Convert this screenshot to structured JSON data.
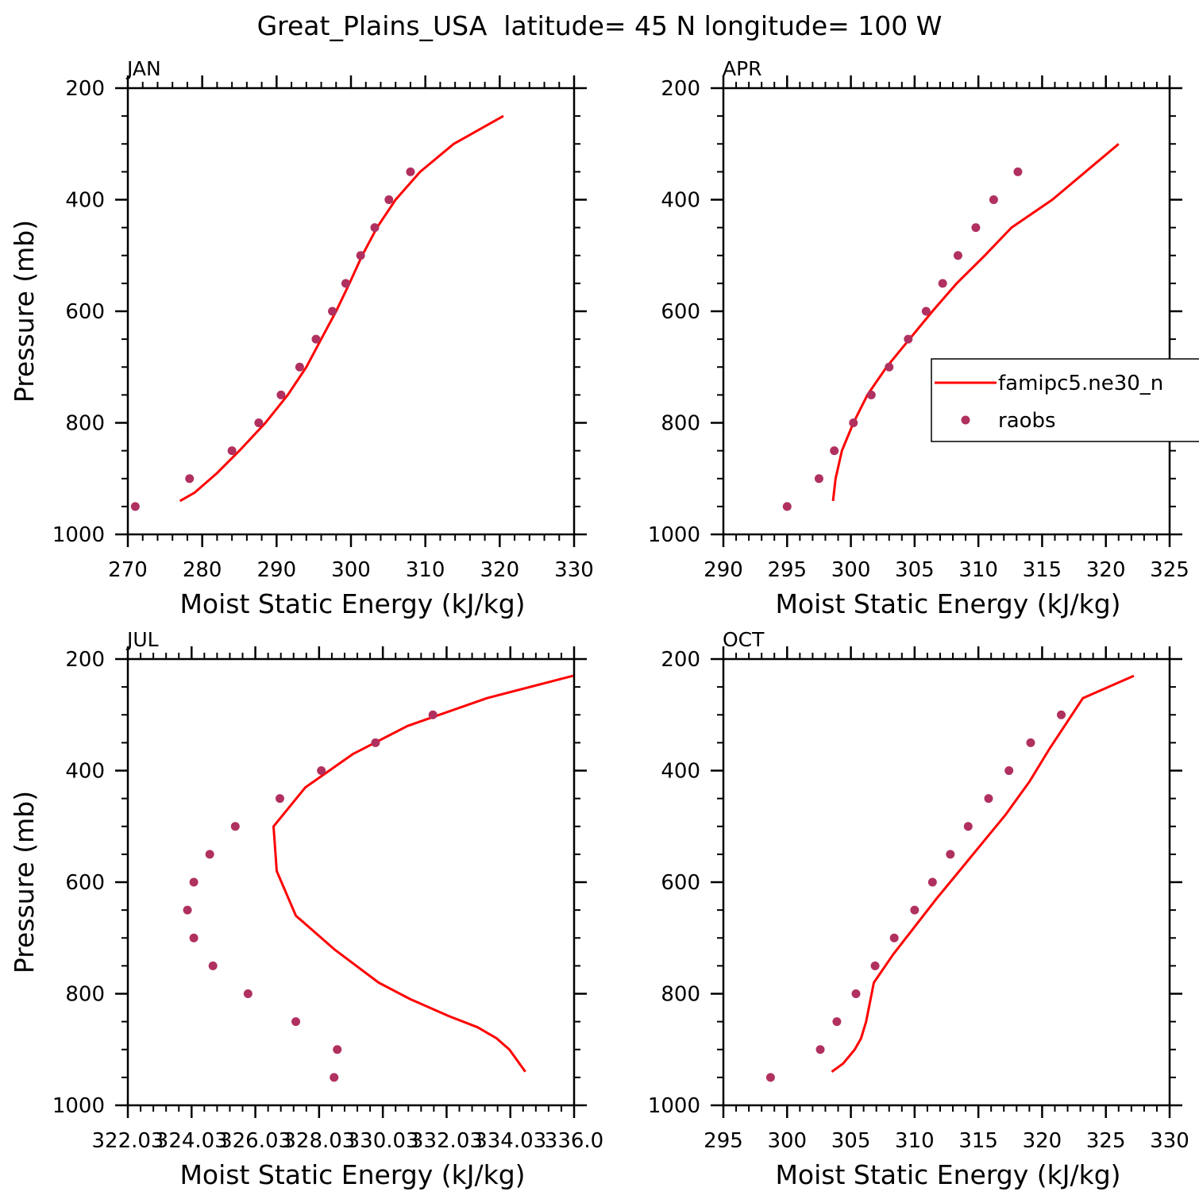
{
  "figure": {
    "title": "Great_Plains_USA  latitude= 45 N longitude= 100 W"
  },
  "colors": {
    "model_line": "#ff0000",
    "obs_marker": "#b03060",
    "axis": "#000000"
  },
  "chart_data": [
    {
      "type": "line",
      "panel_title": "JAN",
      "xlabel": "Moist Static Energy (kJ/kg)",
      "ylabel": "Pressure (mb)",
      "xlim": [
        270,
        330
      ],
      "ylim": [
        1000,
        200
      ],
      "y_inverted": true,
      "xticks": [
        270,
        280,
        290,
        300,
        310,
        320,
        330
      ],
      "xtick_labels": [
        "270",
        "280",
        "290",
        "300",
        "310",
        "320",
        "330"
      ],
      "yticks": [
        200,
        400,
        600,
        800,
        1000
      ],
      "ytick_labels": [
        "200",
        "400",
        "600",
        "800",
        "1000"
      ],
      "series": [
        {
          "kind": "line",
          "x": [
            277.0,
            279.0,
            282.0,
            285.0,
            288.5,
            291.5,
            294.0,
            296.0,
            298.0,
            299.8,
            301.5,
            303.5,
            306.0,
            309.3,
            313.8,
            320.5
          ],
          "y": [
            940,
            925,
            890,
            850,
            800,
            750,
            700,
            650,
            600,
            550,
            500,
            450,
            400,
            350,
            300,
            250
          ]
        },
        {
          "kind": "scatter",
          "x": [
            271.0,
            278.3,
            284.0,
            287.6,
            290.6,
            293.1,
            295.3,
            297.5,
            299.3,
            301.3,
            303.2,
            305.1,
            308.0
          ],
          "y": [
            950,
            900,
            850,
            800,
            750,
            700,
            650,
            600,
            550,
            500,
            450,
            400,
            350
          ]
        }
      ]
    },
    {
      "type": "line",
      "panel_title": "APR",
      "xlabel": "Moist Static Energy (kJ/kg)",
      "ylabel": "",
      "xlim": [
        290,
        325
      ],
      "ylim": [
        1000,
        200
      ],
      "y_inverted": true,
      "xticks": [
        290,
        295,
        300,
        305,
        310,
        315,
        320,
        325
      ],
      "xtick_labels": [
        "290",
        "295",
        "300",
        "305",
        "310",
        "315",
        "320",
        "325"
      ],
      "yticks": [
        200,
        400,
        600,
        800,
        1000
      ],
      "ytick_labels": [
        "200",
        "400",
        "600",
        "800",
        "1000"
      ],
      "legend": {
        "location": "right",
        "entries": [
          "famipc5.ne30_n",
          "raobs"
        ]
      },
      "series": [
        {
          "kind": "line",
          "name": "famipc5.ne30_n",
          "x": [
            298.6,
            298.8,
            299.3,
            300.2,
            301.3,
            302.8,
            304.6,
            306.4,
            308.3,
            310.5,
            312.6,
            315.8,
            321.0
          ],
          "y": [
            940,
            900,
            850,
            800,
            750,
            700,
            650,
            600,
            550,
            500,
            450,
            400,
            300
          ]
        },
        {
          "kind": "scatter",
          "name": "raobs",
          "x": [
            295.0,
            297.5,
            298.7,
            300.2,
            301.6,
            303.0,
            304.5,
            305.9,
            307.2,
            308.4,
            309.8,
            311.2,
            313.1
          ],
          "y": [
            950,
            900,
            850,
            800,
            750,
            700,
            650,
            600,
            550,
            500,
            450,
            400,
            350
          ]
        }
      ]
    },
    {
      "type": "line",
      "panel_title": "JUL",
      "xlabel": "Moist Static Energy (kJ/kg)",
      "ylabel": "Pressure (mb)",
      "xlim": [
        322.03,
        336.03
      ],
      "ylim": [
        1000,
        200
      ],
      "y_inverted": true,
      "xticks": [
        322.03,
        324.03,
        326.03,
        328.03,
        330.03,
        332.03,
        334.03,
        336.03
      ],
      "xtick_labels": [
        "322.03",
        "324.03",
        "326.03",
        "328.03",
        "330.03",
        "332.03",
        "334.03",
        "336.0"
      ],
      "yticks": [
        200,
        400,
        600,
        800,
        1000
      ],
      "ytick_labels": [
        "200",
        "400",
        "600",
        "800",
        "1000"
      ],
      "series": [
        {
          "kind": "line",
          "x": [
            334.5,
            334.0,
            333.6,
            333.0,
            332.1,
            330.9,
            329.9,
            328.5,
            327.3,
            326.7,
            326.6,
            327.6,
            329.1,
            330.8,
            333.3,
            336.0
          ],
          "y": [
            940,
            900,
            880,
            860,
            840,
            810,
            780,
            720,
            660,
            580,
            500,
            430,
            370,
            320,
            270,
            230
          ]
        },
        {
          "kind": "scatter",
          "x": [
            328.5,
            328.6,
            327.3,
            325.8,
            324.7,
            324.1,
            323.9,
            324.1,
            324.6,
            325.4,
            326.8,
            328.1,
            329.8,
            331.6
          ],
          "y": [
            950,
            900,
            850,
            800,
            750,
            700,
            650,
            600,
            550,
            500,
            450,
            400,
            350,
            300
          ]
        }
      ]
    },
    {
      "type": "line",
      "panel_title": "OCT",
      "xlabel": "Moist Static Energy (kJ/kg)",
      "ylabel": "",
      "xlim": [
        295,
        330
      ],
      "ylim": [
        1000,
        200
      ],
      "y_inverted": true,
      "xticks": [
        295,
        300,
        305,
        310,
        315,
        320,
        325,
        330
      ],
      "xtick_labels": [
        "295",
        "300",
        "305",
        "310",
        "315",
        "320",
        "325",
        "330"
      ],
      "yticks": [
        200,
        400,
        600,
        800,
        1000
      ],
      "ytick_labels": [
        "200",
        "400",
        "600",
        "800",
        "1000"
      ],
      "series": [
        {
          "kind": "line",
          "x": [
            303.5,
            304.4,
            305.3,
            305.8,
            306.2,
            306.8,
            308.3,
            310.0,
            311.7,
            313.5,
            315.3,
            317.1,
            319.0,
            320.6,
            323.2,
            327.2
          ],
          "y": [
            940,
            925,
            900,
            880,
            850,
            780,
            730,
            680,
            630,
            580,
            530,
            480,
            420,
            360,
            270,
            230
          ]
        },
        {
          "kind": "scatter",
          "x": [
            298.7,
            302.6,
            303.9,
            305.4,
            306.9,
            308.4,
            310.0,
            311.4,
            312.8,
            314.2,
            315.8,
            317.4,
            319.1,
            321.5
          ],
          "y": [
            950,
            900,
            850,
            800,
            750,
            700,
            650,
            600,
            550,
            500,
            450,
            400,
            350,
            300
          ]
        }
      ]
    }
  ]
}
